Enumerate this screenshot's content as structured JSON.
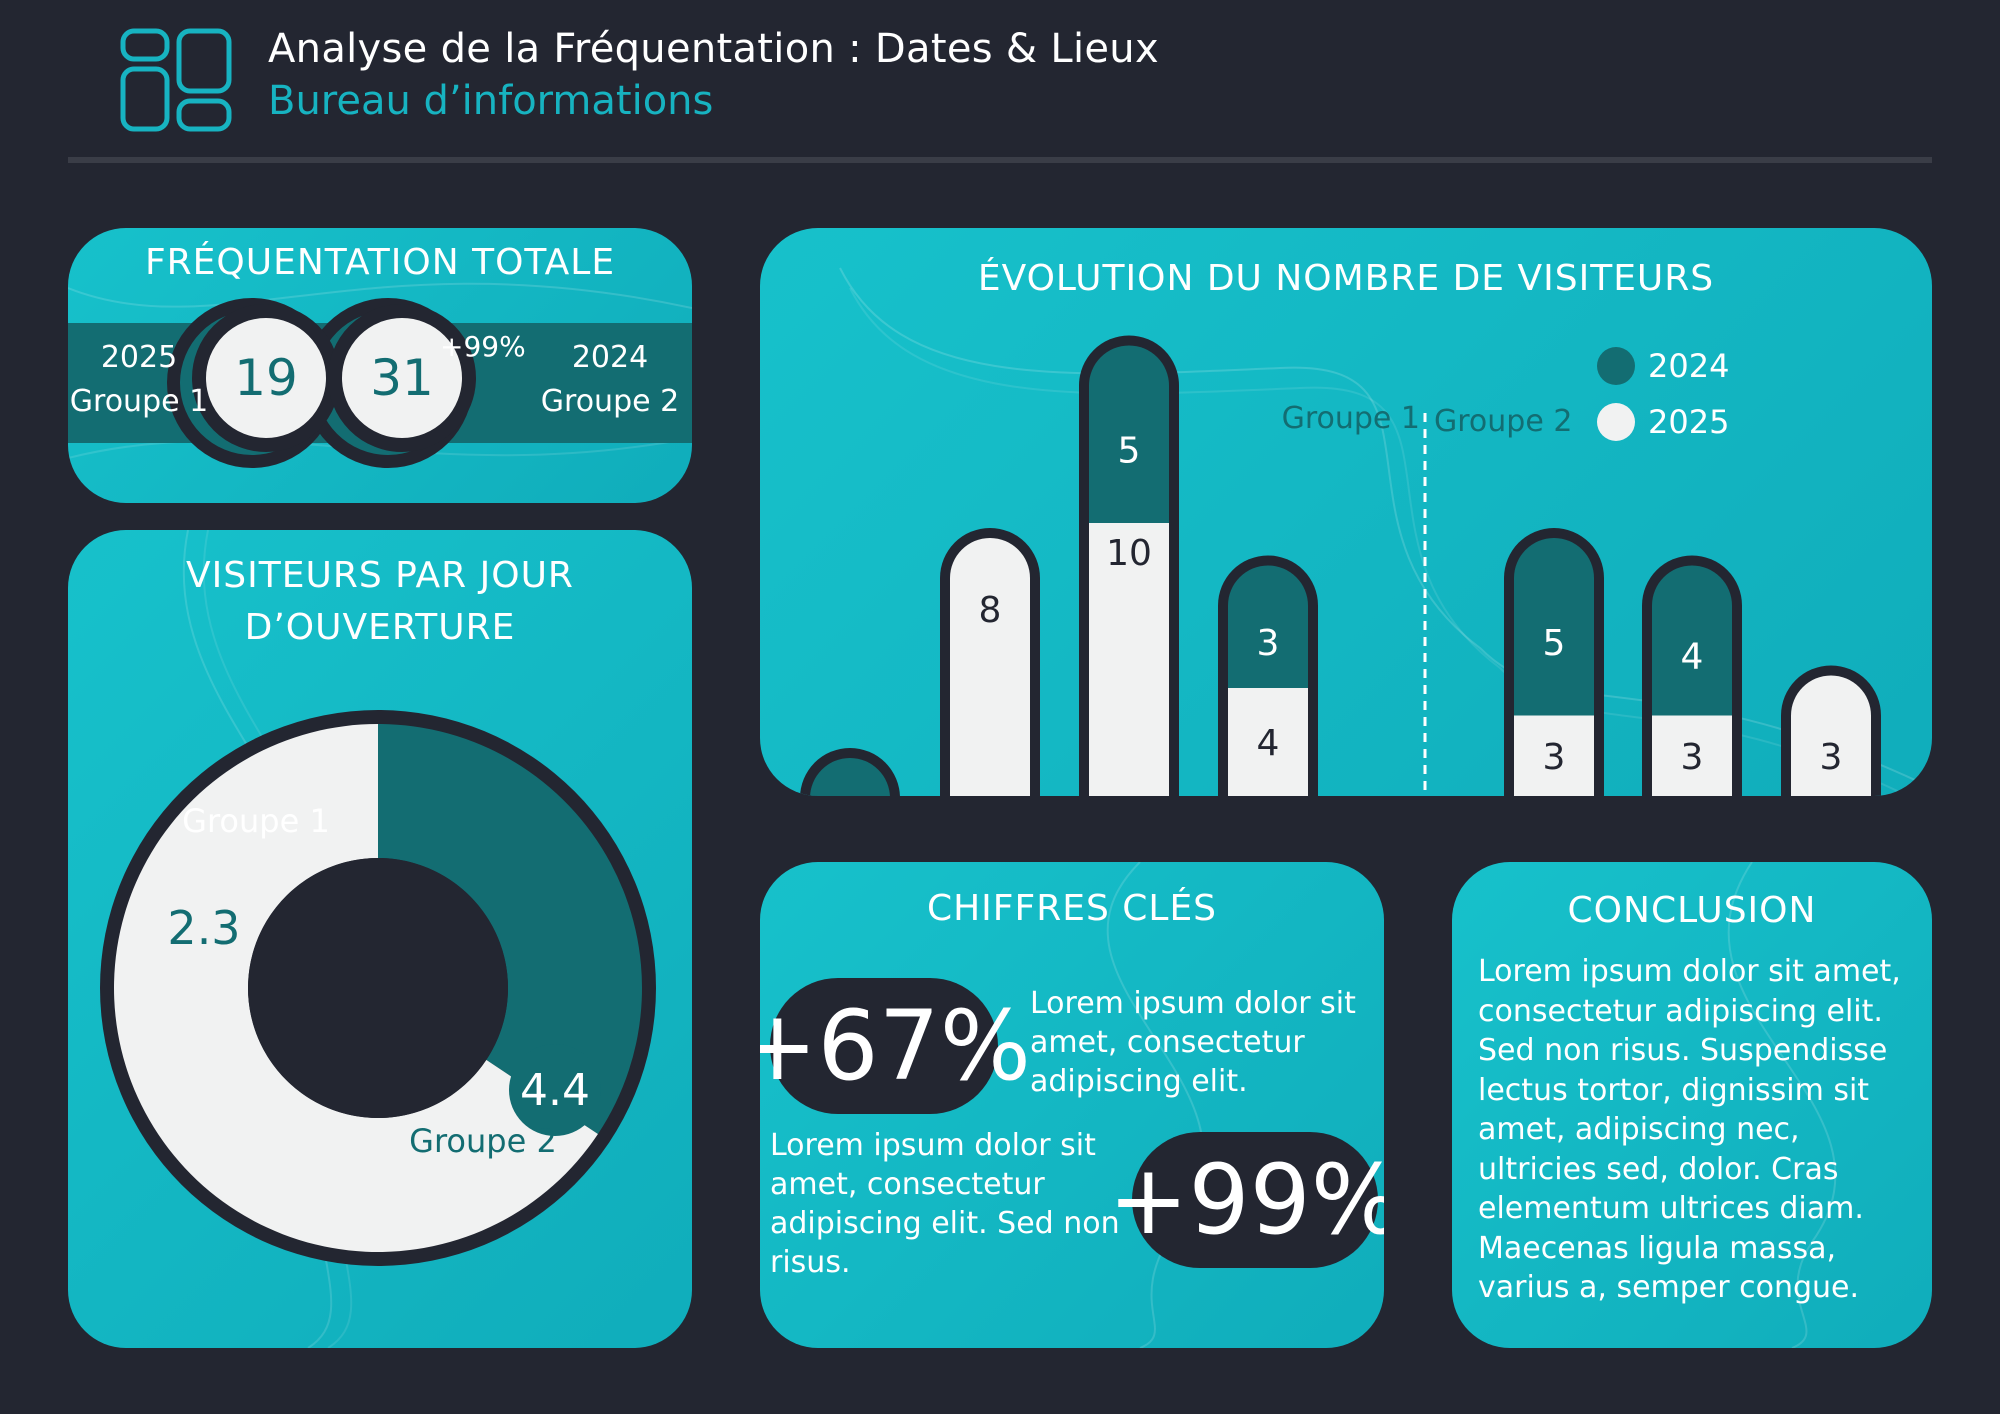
{
  "header": {
    "title": "Analyse de la Fréquentation : Dates & Lieux",
    "subtitle": "Bureau d’informations",
    "logo_icon": "dashboard-grid-icon",
    "accent_color": "#17b3c1"
  },
  "colors": {
    "background": "#232631",
    "card": "#13b9c5",
    "dark_teal": "#136d72",
    "light": "#f1f2f2"
  },
  "total": {
    "title": "FRÉQUENTATION TOTALE",
    "left": {
      "year": "2025",
      "group": "Groupe 1",
      "value": "19"
    },
    "right": {
      "value": "31",
      "change": "+99%",
      "year": "2024",
      "group": "Groupe 2"
    }
  },
  "per_day": {
    "title_line1": "VISITEURS PAR JOUR",
    "title_line2": "D’OUVERTURE"
  },
  "evolution": {
    "title": "ÉVOLUTION DU NOMBRE DE VISITEURS"
  },
  "key_figures": {
    "title": "CHIFFRES CLÉS",
    "stat1": "+67%",
    "text1": "Lorem ipsum dolor sit amet, consectetur adipiscing elit.",
    "stat2": "+99%",
    "text2": "Lorem ipsum dolor sit amet, consectetur adipiscing elit. Sed non risus."
  },
  "conclusion": {
    "title": "CONCLUSION",
    "text": "Lorem ipsum dolor sit amet, consectetur adipiscing elit. Sed non risus. Suspendisse lectus tortor, dignissim sit amet, adipiscing nec, ultricies sed, dolor. Cras elementum ultrices diam. Maecenas ligula massa, varius a, semper congue."
  },
  "chart_data": [
    {
      "type": "pie",
      "title": "VISITEURS PAR JOUR D’OUVERTURE",
      "labels": [
        "Groupe 1",
        "Groupe 2"
      ],
      "values": [
        2.3,
        4.4
      ],
      "colors": [
        "#136d72",
        "#f1f2f2"
      ]
    },
    {
      "type": "bar",
      "stacked": true,
      "title": "ÉVOLUTION DU NOMBRE DE VISITEURS",
      "categories": [
        "",
        "",
        "",
        "",
        "",
        "",
        "",
        ""
      ],
      "groups": [
        {
          "label": "Groupe 1",
          "indices": [
            0,
            1,
            2,
            3
          ]
        },
        {
          "label": "Groupe 2",
          "indices": [
            4,
            5,
            6,
            7
          ]
        }
      ],
      "series": [
        {
          "name": "2025",
          "color": "#f1f2f2",
          "values": [
            0,
            8,
            10,
            4,
            3,
            3,
            3,
            0
          ]
        },
        {
          "name": "2024",
          "color": "#136d72",
          "values": [
            0,
            0,
            5,
            3,
            5,
            4,
            0,
            0
          ]
        }
      ],
      "value_labels_2025": [
        "",
        "8",
        "10",
        "4",
        "3",
        "3",
        "3",
        ""
      ],
      "value_labels_2024": [
        "",
        "",
        "5",
        "3",
        "5",
        "4",
        "",
        ""
      ],
      "legend": {
        "position": "top-right",
        "items": [
          "2024",
          "2025"
        ]
      },
      "ylim": [
        0,
        15
      ],
      "grid": false
    }
  ]
}
